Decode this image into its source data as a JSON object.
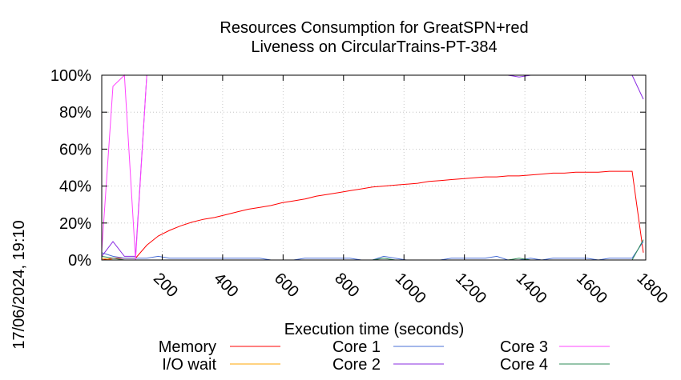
{
  "chart_data": {
    "type": "line",
    "title_line1": "Resources Consumption for GreatSPN+red",
    "title_line2": "Liveness on CircularTrains-PT-384",
    "xlabel": "Execution time (seconds)",
    "ylabel": "",
    "timestamp": "17/06/2024, 19:10",
    "xlim": [
      0,
      1800
    ],
    "ylim": [
      0,
      100
    ],
    "xticks": [
      200,
      400,
      600,
      800,
      1000,
      1200,
      1400,
      1600,
      1800
    ],
    "yticks": [
      0,
      20,
      40,
      60,
      80,
      100
    ],
    "ytick_labels": [
      "0%",
      "20%",
      "40%",
      "60%",
      "80%",
      "100%"
    ],
    "grid": true,
    "legend_position": "bottom",
    "series": [
      {
        "name": "Memory",
        "color": "#ff0000",
        "x": [
          0,
          37,
          75,
          112,
          149,
          187,
          224,
          261,
          299,
          336,
          373,
          411,
          448,
          485,
          523,
          560,
          597,
          635,
          672,
          709,
          747,
          784,
          821,
          859,
          896,
          933,
          971,
          1008,
          1045,
          1083,
          1120,
          1157,
          1195,
          1232,
          1269,
          1307,
          1344,
          1381,
          1419,
          1456,
          1493,
          1531,
          1568,
          1605,
          1643,
          1680,
          1717,
          1755,
          1792
        ],
        "y": [
          0,
          1,
          1,
          1,
          8,
          13,
          16,
          18.5,
          20.5,
          22,
          23,
          24.5,
          26,
          27.5,
          28.5,
          29.5,
          31,
          32,
          33,
          34.5,
          35.5,
          36.5,
          37.5,
          38.5,
          39.5,
          40,
          40.5,
          41,
          41.5,
          42.5,
          43,
          43.5,
          44,
          44.5,
          45,
          45,
          45.5,
          45.5,
          46,
          46.5,
          47,
          47,
          47.5,
          47.5,
          47.5,
          48,
          48,
          48,
          4
        ]
      },
      {
        "name": "I/O wait",
        "color": "#ffa500",
        "x": [
          0,
          37,
          75,
          112,
          149,
          1792
        ],
        "y": [
          1,
          0,
          0,
          0,
          0,
          0
        ]
      },
      {
        "name": "Core 1",
        "color": "#4a6fd6",
        "x": [
          0,
          37,
          75,
          112,
          149,
          187,
          224,
          261,
          299,
          336,
          373,
          411,
          448,
          485,
          523,
          560,
          597,
          635,
          672,
          709,
          747,
          784,
          821,
          859,
          896,
          933,
          971,
          1008,
          1045,
          1083,
          1120,
          1157,
          1195,
          1232,
          1269,
          1307,
          1344,
          1381,
          1419,
          1456,
          1493,
          1531,
          1568,
          1605,
          1643,
          1680,
          1717,
          1755,
          1792
        ],
        "y": [
          4,
          2,
          1,
          1,
          1,
          2,
          1,
          1,
          1,
          1,
          1,
          1,
          1,
          1,
          1,
          0,
          0,
          0,
          1,
          1,
          1,
          1,
          1,
          0,
          0,
          2,
          1,
          0,
          0,
          0,
          0,
          1,
          1,
          1,
          1,
          2,
          0,
          0,
          1,
          0,
          1,
          1,
          1,
          1,
          0,
          1,
          1,
          1,
          10
        ]
      },
      {
        "name": "Core 2",
        "color": "#8a2be2",
        "x": [
          0,
          37,
          75,
          112,
          149,
          187,
          224,
          1344,
          1381,
          1419,
          1456,
          1717,
          1755,
          1792
        ],
        "y": [
          2,
          10,
          2,
          2,
          100,
          100,
          100,
          100,
          99,
          100,
          100,
          100,
          100,
          87
        ]
      },
      {
        "name": "Core 3",
        "color": "#ff44ff",
        "x": [
          0,
          37,
          75,
          112,
          149,
          187,
          1792
        ],
        "y": [
          5,
          94,
          100,
          0,
          100,
          100,
          100
        ]
      },
      {
        "name": "Core 4",
        "color": "#2e8b57",
        "x": [
          0,
          37,
          75,
          112,
          149,
          187,
          224,
          261,
          299,
          336,
          373,
          411,
          448,
          485,
          523,
          560,
          597,
          635,
          672,
          709,
          747,
          784,
          821,
          859,
          896,
          933,
          971,
          1008,
          1045,
          1083,
          1120,
          1157,
          1195,
          1232,
          1269,
          1307,
          1344,
          1381,
          1419,
          1456,
          1493,
          1531,
          1568,
          1605,
          1643,
          1680,
          1717,
          1755,
          1792
        ],
        "y": [
          2,
          1,
          0,
          0,
          0,
          0,
          0,
          0,
          0,
          0,
          0,
          0,
          0,
          0,
          0,
          0,
          0,
          0,
          0,
          0,
          0,
          0,
          0,
          0,
          0,
          1,
          0,
          0,
          0,
          0,
          0,
          0,
          0,
          0,
          0,
          0,
          0,
          1,
          0,
          0,
          0,
          0,
          0,
          0,
          0,
          0,
          0,
          0,
          11
        ]
      }
    ]
  }
}
